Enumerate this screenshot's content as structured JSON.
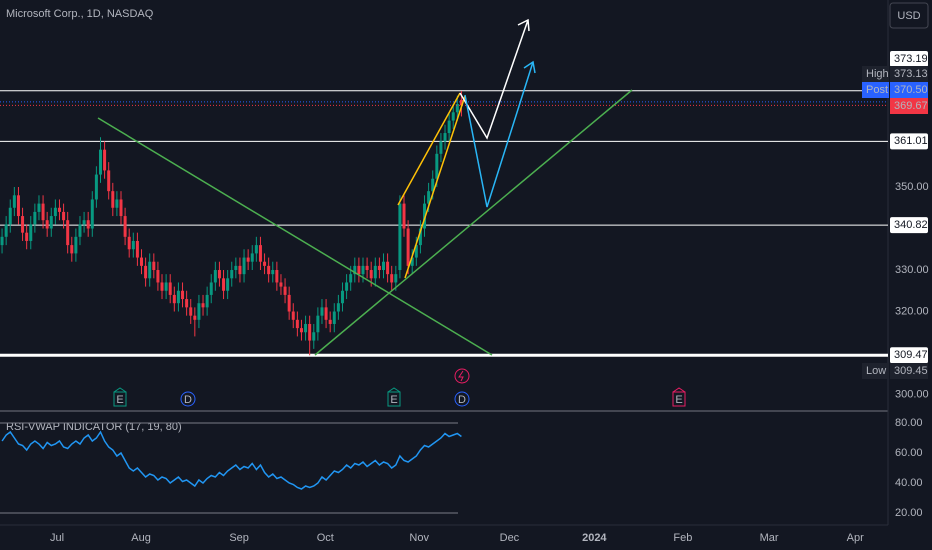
{
  "chart_data": [
    {
      "type": "candlestick",
      "title": "Microsoft Corp., 1D, NASDAQ",
      "currency": "USD",
      "up_color": "#089981",
      "down_color": "#f23645",
      "open": [
        336,
        338,
        341,
        345,
        348,
        343,
        339,
        337,
        341,
        344,
        346,
        342,
        340,
        343,
        345,
        344,
        342,
        336,
        334,
        338,
        341,
        342,
        340,
        347,
        353,
        359,
        354,
        349,
        345,
        347,
        343,
        338,
        335,
        337,
        333,
        331,
        328,
        332,
        330,
        327,
        325,
        327,
        324,
        322,
        325,
        323,
        321,
        319,
        318,
        322,
        321,
        324,
        327,
        330,
        328,
        325,
        328,
        330,
        331,
        329,
        333,
        332,
        334,
        336,
        332,
        331,
        329,
        330,
        327,
        326,
        324,
        320,
        318,
        316,
        315,
        317,
        313,
        315,
        319,
        321,
        318,
        317,
        320,
        322,
        325,
        327,
        329,
        331,
        329,
        331,
        330,
        328,
        331,
        330,
        332,
        329,
        327,
        330,
        346,
        340,
        331,
        333,
        336,
        340,
        346,
        349,
        352,
        358,
        361,
        363,
        366,
        368,
        371
      ],
      "high": [
        340,
        343,
        347,
        350,
        350,
        345,
        341,
        343,
        346,
        348,
        348,
        344,
        345,
        347,
        347,
        346,
        344,
        338,
        340,
        343,
        344,
        344,
        349,
        355,
        362,
        361,
        356,
        351,
        349,
        349,
        345,
        340,
        339,
        339,
        335,
        333,
        334,
        334,
        332,
        329,
        329,
        329,
        326,
        327,
        327,
        325,
        323,
        321,
        324,
        324,
        326,
        329,
        332,
        332,
        330,
        330,
        332,
        333,
        333,
        335,
        335,
        336,
        338,
        338,
        334,
        333,
        332,
        332,
        329,
        328,
        326,
        322,
        320,
        318,
        319,
        319,
        317,
        321,
        323,
        323,
        320,
        322,
        324,
        327,
        329,
        331,
        333,
        333,
        333,
        333,
        332,
        333,
        333,
        334,
        334,
        331,
        331,
        348,
        348,
        342,
        335,
        338,
        342,
        348,
        351,
        354,
        360,
        363,
        365,
        368,
        370,
        372,
        373.13
      ],
      "low": [
        334,
        336,
        339,
        343,
        341,
        337,
        335,
        335,
        339,
        342,
        340,
        338,
        338,
        341,
        342,
        340,
        334,
        332,
        332,
        336,
        339,
        338,
        338,
        345,
        351,
        352,
        347,
        343,
        343,
        341,
        336,
        333,
        333,
        331,
        329,
        326,
        326,
        328,
        325,
        323,
        323,
        322,
        320,
        320,
        321,
        319,
        317,
        314,
        316,
        319,
        319,
        322,
        325,
        326,
        323,
        323,
        326,
        328,
        327,
        327,
        330,
        330,
        332,
        330,
        329,
        327,
        327,
        325,
        324,
        322,
        318,
        316,
        314,
        313,
        313,
        309.45,
        311,
        313,
        317,
        316,
        315,
        315,
        318,
        320,
        323,
        325,
        327,
        327,
        327,
        328,
        326,
        326,
        328,
        328,
        327,
        325,
        325,
        328,
        338,
        329,
        329,
        331,
        334,
        338,
        344,
        347,
        350,
        356,
        359,
        361,
        364,
        366,
        367
      ],
      "close": [
        338,
        341,
        345,
        348,
        343,
        339,
        337,
        341,
        344,
        346,
        342,
        340,
        343,
        345,
        344,
        342,
        336,
        334,
        338,
        341,
        342,
        340,
        347,
        353,
        359,
        354,
        349,
        345,
        347,
        343,
        338,
        335,
        337,
        333,
        331,
        328,
        332,
        330,
        327,
        325,
        327,
        324,
        322,
        325,
        323,
        321,
        319,
        318,
        322,
        321,
        324,
        327,
        330,
        328,
        325,
        328,
        330,
        331,
        329,
        333,
        332,
        334,
        336,
        332,
        331,
        329,
        330,
        327,
        326,
        324,
        320,
        318,
        316,
        315,
        317,
        313,
        315,
        319,
        321,
        318,
        317,
        320,
        322,
        325,
        327,
        329,
        331,
        329,
        331,
        330,
        328,
        331,
        330,
        332,
        329,
        327,
        329,
        346,
        340,
        331,
        333,
        336,
        340,
        346,
        349,
        352,
        358,
        361,
        363,
        366,
        368,
        370,
        369.67
      ],
      "xlim": [
        -0.5,
        216
      ],
      "xticks": [
        {
          "value": 13.4,
          "label": "Jul"
        },
        {
          "value": 33.9,
          "label": "Aug"
        },
        {
          "value": 57.8,
          "label": "Sep"
        },
        {
          "value": 78.8,
          "label": "Oct"
        },
        {
          "value": 101.7,
          "label": "Nov"
        },
        {
          "value": 123.7,
          "label": "Dec"
        },
        {
          "value": 144.4,
          "label": "2024"
        },
        {
          "value": 166,
          "label": "Feb"
        },
        {
          "value": 187,
          "label": "Mar"
        },
        {
          "value": 208,
          "label": "Apr"
        }
      ],
      "ylim": [
        296.27,
        395.06
      ],
      "yticks": [
        {
          "value": 350,
          "label": "350.00"
        },
        {
          "value": 330,
          "label": "330.00"
        },
        {
          "value": 320,
          "label": "320.00"
        },
        {
          "value": 300,
          "label": "300.00"
        }
      ],
      "price_lines": [
        373.19,
        361.01,
        340.82,
        309.47
      ],
      "high_name": "High",
      "high_value": 373.13,
      "post_name": "Post",
      "post_value": {
        "value": 370.5,
        "label": "370.50"
      },
      "last_value": 369.67,
      "low_name": "Low",
      "low_value": 309.45,
      "events": [
        "E",
        "D",
        "E",
        "D",
        "E"
      ]
    },
    {
      "type": "line",
      "title": "RSI-VWAP INDICATOR (17, 19, 80)",
      "color": "#2196f3",
      "values": [
        68,
        72,
        74,
        70,
        66,
        65,
        62,
        66,
        68,
        66,
        63,
        67,
        65,
        66,
        68,
        64,
        63,
        66,
        68,
        66,
        70,
        72,
        68,
        70,
        74,
        68,
        64,
        62,
        58,
        60,
        55,
        50,
        48,
        50,
        47,
        44,
        46,
        45,
        42,
        44,
        43,
        40,
        42,
        44,
        41,
        42,
        40,
        38,
        42,
        40,
        43,
        45,
        44,
        47,
        45,
        48,
        50,
        52,
        49,
        51,
        50,
        53,
        49,
        52,
        47,
        44,
        46,
        43,
        44,
        42,
        40,
        39,
        37,
        36,
        38,
        37,
        38,
        40,
        44,
        42,
        45,
        48,
        47,
        49,
        52,
        50,
        53,
        52,
        54,
        51,
        53,
        55,
        52,
        54,
        53,
        50,
        52,
        58,
        55,
        54,
        56,
        58,
        62,
        65,
        64,
        66,
        68,
        70,
        73,
        71,
        72,
        73,
        71
      ],
      "ylim": [
        12,
        85.3
      ],
      "yticks": [
        {
          "value": 80,
          "label": "80.00"
        },
        {
          "value": 60,
          "label": "60.00"
        },
        {
          "value": 40,
          "label": "40.00"
        },
        {
          "value": 20,
          "label": "20.00"
        }
      ],
      "bands": [
        80,
        20
      ]
    }
  ]
}
